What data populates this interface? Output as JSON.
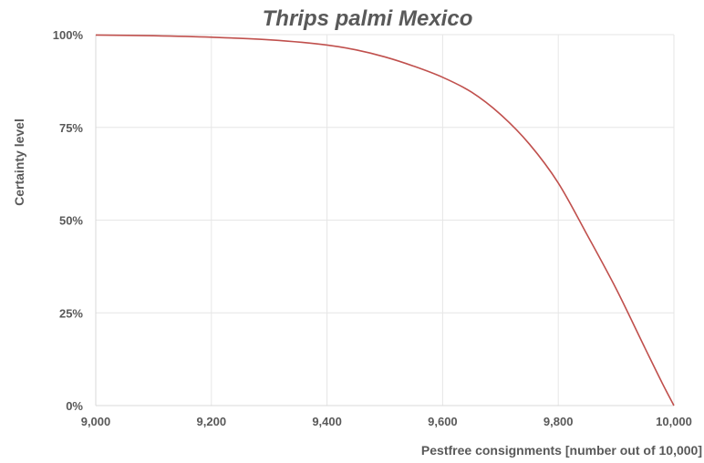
{
  "chart_data": {
    "type": "line",
    "title": "Thrips palmi Mexico",
    "xlabel": "Pestfree consignments [number out of 10,000]",
    "ylabel": "Certainty level",
    "xlim": [
      9000,
      10000
    ],
    "ylim": [
      0,
      100
    ],
    "x_ticks": [
      9000,
      9200,
      9400,
      9600,
      9800,
      10000
    ],
    "x_tick_labels": [
      "9,000",
      "9,200",
      "9,400",
      "9,600",
      "9,800",
      "10,000"
    ],
    "y_ticks": [
      0,
      25,
      50,
      75,
      100
    ],
    "y_tick_labels": [
      "0%",
      "25%",
      "50%",
      "75%",
      "100%"
    ],
    "grid": true,
    "legend": "none",
    "series": [
      {
        "color": "#c0504d",
        "x": [
          9000,
          9100,
          9200,
          9300,
          9400,
          9450,
          9500,
          9550,
          9600,
          9650,
          9700,
          9750,
          9800,
          9850,
          9900,
          9950,
          9980,
          10000
        ],
        "y": [
          99.9,
          99.7,
          99.3,
          98.6,
          97.2,
          95.9,
          94.0,
          91.5,
          88.5,
          84.5,
          78.5,
          70.5,
          60.0,
          46.0,
          31.5,
          15.5,
          6.0,
          0.0
        ]
      }
    ]
  }
}
